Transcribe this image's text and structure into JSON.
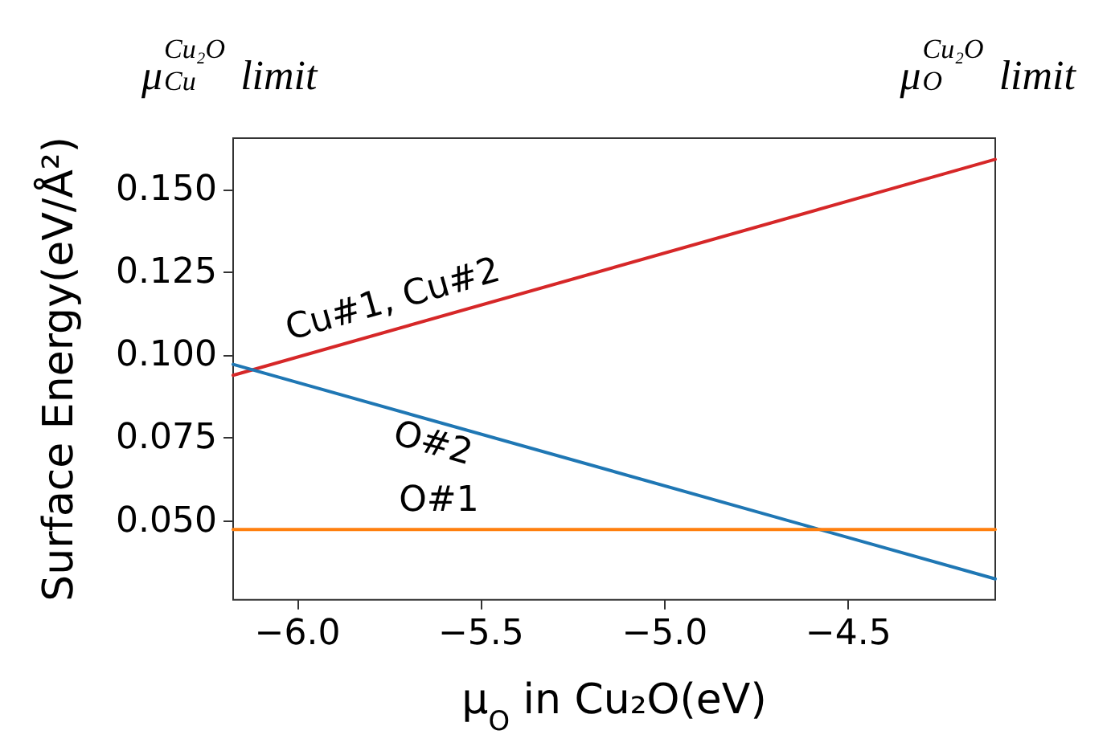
{
  "chart_data": {
    "type": "line",
    "xlabel": "μ$_{O}$ in Cu₂O(eV)",
    "ylabel": "Surface Energy(eV/Å²)",
    "xlim": [
      -6.175,
      -4.1
    ],
    "x": [
      -6.175,
      -4.1
    ],
    "ylim": [
      0.0262,
      0.1654
    ],
    "xticks": [
      {
        "value": -6,
        "label": "−6.0"
      },
      {
        "value": -5.5,
        "label": "−5.5"
      },
      {
        "value": -5,
        "label": "−5.0"
      },
      {
        "value": -4.5,
        "label": "−4.5"
      }
    ],
    "yticks": [
      {
        "value": 0.05,
        "label": "0.050"
      },
      {
        "value": 0.075,
        "label": "0.075"
      },
      {
        "value": 0.1,
        "label": "0.100"
      },
      {
        "value": 0.125,
        "label": "0.125"
      },
      {
        "value": 0.15,
        "label": "0.150"
      }
    ],
    "series": [
      {
        "name": "Cu#1, Cu#2",
        "color": "#d62728",
        "values": [
          0.0939,
          0.159
        ]
      },
      {
        "name": "O#2",
        "color": "#1f77b4",
        "values": [
          0.0972,
          0.0325
        ]
      },
      {
        "name": "O#1",
        "color": "#ff7f0e",
        "values": [
          0.0474,
          0.0474
        ]
      }
    ],
    "annotations": [
      "μ$^{Cu₂O}$$_{Cu}$ limit",
      "μ$^{Cu₂O}$$_{O}$ limit"
    ],
    "line_style": "solid",
    "marker": "none",
    "grid": false,
    "legend": false
  }
}
